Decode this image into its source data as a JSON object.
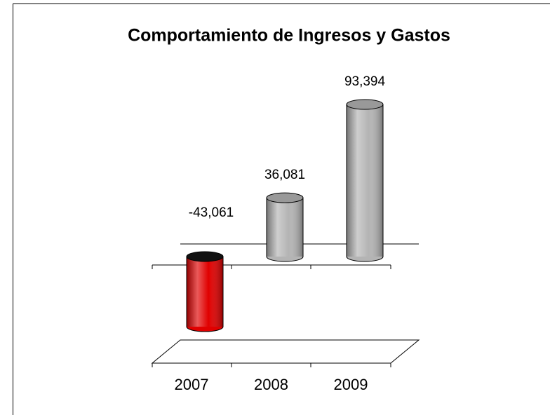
{
  "chart_data": {
    "type": "bar3d",
    "title": "Comportamiento de Ingresos y Gastos",
    "categories": [
      "2007",
      "2008",
      "2009"
    ],
    "values": [
      -43061,
      36081,
      93394
    ],
    "value_labels": [
      "-43,061",
      "36,081",
      "93,394"
    ],
    "colors": [
      "#e00000",
      "#b4b4b4",
      "#b4b4b4"
    ]
  }
}
